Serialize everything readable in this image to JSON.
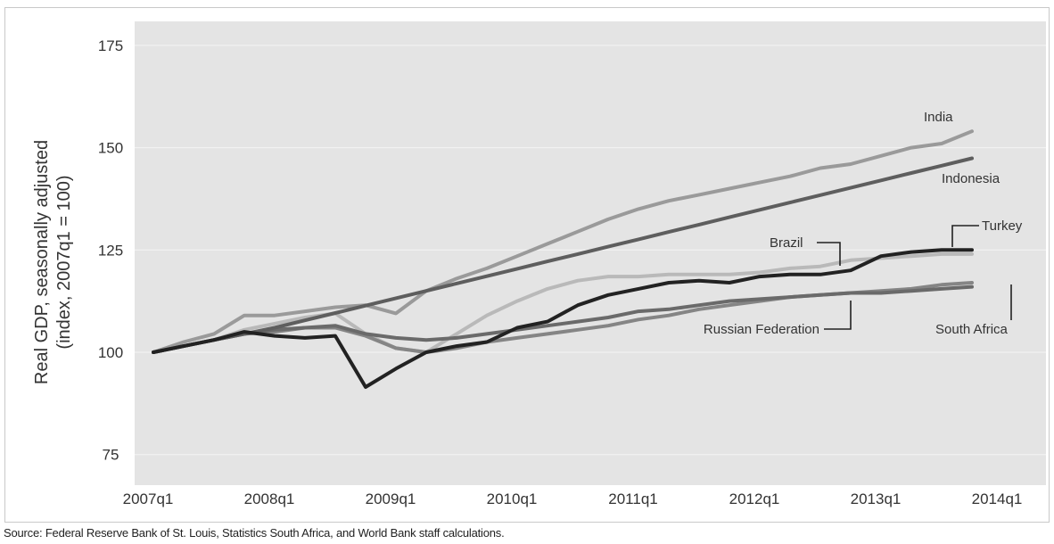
{
  "chart_data": {
    "type": "line",
    "title": "",
    "xlabel": "",
    "ylabel_line1": "Real GDP, seasonally adjusted",
    "ylabel_line2": "(index, 2007q1 = 100)",
    "ylim": [
      75,
      175
    ],
    "yticks": [
      75,
      100,
      125,
      150,
      175
    ],
    "xticks": [
      "2007q1",
      "2008q1",
      "2009q1",
      "2010q1",
      "2011q1",
      "2012q1",
      "2013q1",
      "2014q1"
    ],
    "x": [
      "2007q1",
      "2007q2",
      "2007q3",
      "2007q4",
      "2008q1",
      "2008q2",
      "2008q3",
      "2008q4",
      "2009q1",
      "2009q2",
      "2009q3",
      "2009q4",
      "2010q1",
      "2010q2",
      "2010q3",
      "2010q4",
      "2011q1",
      "2011q2",
      "2011q3",
      "2011q4",
      "2012q1",
      "2012q2",
      "2012q3",
      "2012q4",
      "2013q1",
      "2013q2",
      "2013q3",
      "2013q4"
    ],
    "grid": true,
    "series": [
      {
        "name": "India",
        "color": "#9a9a9a",
        "width": 4,
        "values": [
          100,
          102.5,
          104.5,
          109,
          109,
          110,
          111,
          111.5,
          109.5,
          115,
          118,
          120.5,
          123.5,
          126.5,
          129.5,
          132.5,
          135,
          137,
          138.5,
          140,
          141.5,
          143,
          145,
          146,
          148,
          150,
          151,
          154
        ]
      },
      {
        "name": "Indonesia",
        "color": "#5e5e5e",
        "width": 4,
        "values": [
          100,
          101.5,
          103,
          104.5,
          106,
          107.8,
          109.6,
          111.4,
          113.2,
          115,
          116.8,
          118.6,
          120.4,
          122.2,
          124,
          125.8,
          127.6,
          129.4,
          131.2,
          133,
          134.8,
          136.6,
          138.4,
          140.2,
          142,
          143.8,
          145.6,
          147.4
        ]
      },
      {
        "name": "Turkey",
        "color": "#222222",
        "width": 4,
        "values": [
          100,
          101.5,
          103,
          105,
          104,
          103.5,
          104,
          91.5,
          96,
          100,
          101.5,
          102.5,
          106,
          107.5,
          111.5,
          114,
          115.5,
          117,
          117.5,
          117,
          118.5,
          119,
          119,
          120,
          123.5,
          124.5,
          125,
          125
        ]
      },
      {
        "name": "Brazil",
        "color": "#b9b9b9",
        "width": 4,
        "values": [
          100,
          101.5,
          103,
          105.5,
          107,
          108.5,
          109.5,
          104.5,
          101,
          100,
          104.5,
          109,
          112.5,
          115.5,
          117.5,
          118.5,
          118.5,
          119,
          119,
          119,
          119.5,
          120.5,
          121,
          122.5,
          123,
          123.5,
          124,
          124
        ]
      },
      {
        "name": "Russian Federation",
        "color": "#6a6a6a",
        "width": 4,
        "values": [
          100,
          101.5,
          103,
          104.5,
          105.5,
          106,
          106.5,
          104.5,
          103.5,
          103,
          103.5,
          104.5,
          105.5,
          106.5,
          107.5,
          108.5,
          110,
          110.5,
          111.5,
          112.5,
          113,
          113.5,
          114,
          114.5,
          114.5,
          115,
          115.5,
          116
        ]
      },
      {
        "name": "South Africa",
        "color": "#858585",
        "width": 4,
        "values": [
          100,
          101.5,
          103,
          104.5,
          105,
          106,
          106,
          104,
          101,
          100,
          101,
          102.5,
          103.5,
          104.5,
          105.5,
          106.5,
          108,
          109,
          110.5,
          111.5,
          112.5,
          113.5,
          114,
          114.5,
          115,
          115.5,
          116.5,
          117
        ]
      }
    ],
    "annotations": [
      "India",
      "Indonesia",
      "Turkey",
      "Brazil",
      "Russian Federation",
      "South Africa"
    ]
  },
  "source": "Source: Federal Reserve Bank of St. Louis, Statistics South Africa, and World Bank staff calculations."
}
